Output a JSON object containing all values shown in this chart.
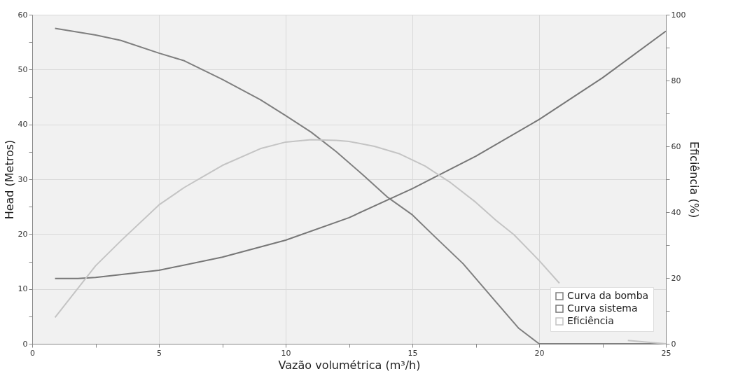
{
  "chart_data": {
    "type": "line",
    "xlabel": "Vazão volumétrica (m³/h)",
    "ylabel": "Head (Metros)",
    "y2label": "Eficiência (%)",
    "xlim": [
      0,
      25
    ],
    "xticks": [
      0,
      {
        "value": 2.5,
        "label": null
      },
      5,
      {
        "value": 7.5,
        "label": null
      },
      10,
      {
        "value": 12.5,
        "label": null
      },
      15,
      {
        "value": 17.5,
        "label": null
      },
      20,
      {
        "value": 22.5,
        "label": null
      },
      25
    ],
    "ylim": [
      0,
      60
    ],
    "yticks": [
      0,
      {
        "value": 5,
        "label": null
      },
      10,
      {
        "value": 15,
        "label": null
      },
      20,
      {
        "value": 25,
        "label": null
      },
      30,
      {
        "value": 35,
        "label": null
      },
      40,
      {
        "value": 45,
        "label": null
      },
      50,
      {
        "value": 55,
        "label": null
      },
      60
    ],
    "y2lim": [
      0,
      100
    ],
    "y2ticks": [
      0,
      {
        "value": 10,
        "label": null
      },
      20,
      {
        "value": 30,
        "label": null
      },
      40,
      {
        "value": 50,
        "label": null
      },
      60,
      {
        "value": 70,
        "label": null
      },
      80,
      {
        "value": 90,
        "label": null
      },
      100
    ],
    "grid": true,
    "legend": "bottom right",
    "line_style": "solid",
    "marker": "none",
    "series": [
      {
        "name": "Curva da bomba",
        "color": "#7f7f7f",
        "x": [
          0.9,
          2.5,
          3.5,
          5,
          6,
          7.5,
          9,
          10,
          11,
          12,
          13,
          14,
          15,
          15.8,
          17,
          18.3,
          19.2,
          20,
          25
        ],
        "values": [
          57.5,
          56.3,
          55.3,
          53,
          51.6,
          48.2,
          44.5,
          41.6,
          38.6,
          35,
          31,
          26.8,
          23.5,
          19.9,
          14.6,
          7.6,
          2.8,
          0,
          0
        ]
      },
      {
        "name": "Curva sistema",
        "color": "#777777",
        "x": [
          0.9,
          1.8,
          2.5,
          5,
          7.5,
          10,
          12.5,
          15,
          17.5,
          20,
          22.5,
          25
        ],
        "values": [
          11.9,
          11.9,
          12.1,
          13.4,
          15.8,
          18.9,
          23,
          28.3,
          34.2,
          40.9,
          48.5,
          57
        ]
      },
      {
        "name": "Eficiência",
        "color": "#c4c4c4",
        "axis": "y2",
        "x": [
          0.9,
          2.5,
          3.5,
          5,
          6,
          7.5,
          9,
          10,
          11,
          12,
          12.5,
          13.5,
          14.5,
          15.5,
          16.5,
          17.5,
          18.3,
          19,
          20,
          20.8,
          22.5,
          23.5,
          25
        ],
        "values": [
          8,
          23.7,
          31.3,
          42.2,
          47.5,
          54.2,
          59.3,
          61.3,
          62,
          61.8,
          61.5,
          60,
          57.7,
          54,
          49,
          43,
          37.5,
          33.2,
          25.3,
          18.4,
          null,
          1,
          0
        ]
      }
    ]
  }
}
